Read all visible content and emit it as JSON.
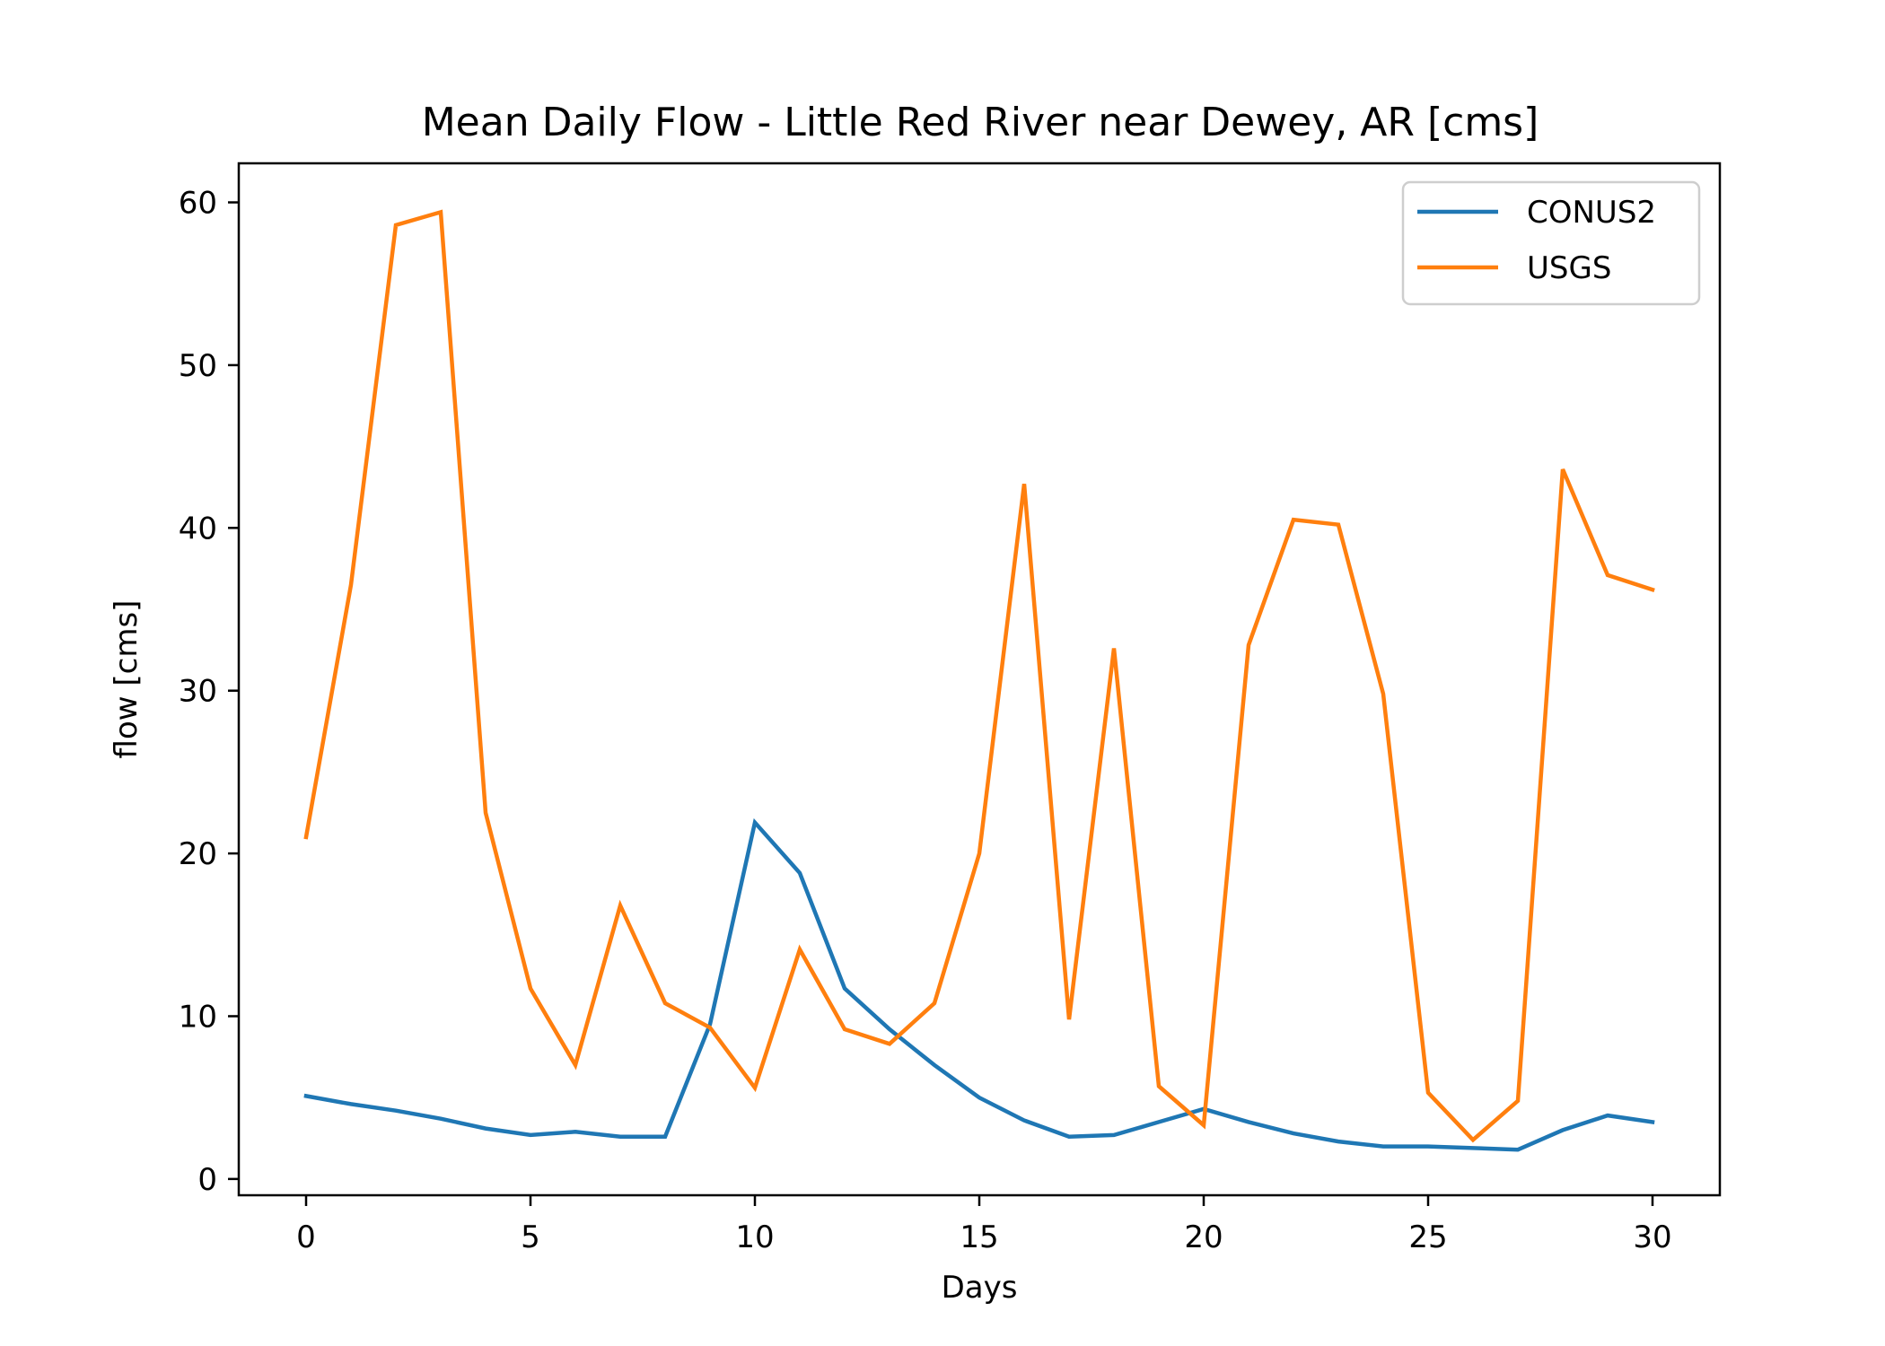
{
  "chart_data": {
    "type": "line",
    "title": "Mean Daily Flow - Little Red River near Dewey, AR [cms]",
    "xlabel": "Days",
    "ylabel": "flow [cms]",
    "xlim": [
      -1.5,
      31.5
    ],
    "ylim": [
      -1.0,
      62.4
    ],
    "xticks": [
      0,
      5,
      10,
      15,
      20,
      25,
      30
    ],
    "yticks": [
      0,
      10,
      20,
      30,
      40,
      50,
      60
    ],
    "grid": false,
    "legend_position": "upper right",
    "x": [
      0,
      1,
      2,
      3,
      4,
      5,
      6,
      7,
      8,
      9,
      10,
      11,
      12,
      13,
      14,
      15,
      16,
      17,
      18,
      19,
      20,
      21,
      22,
      23,
      24,
      25,
      26,
      27,
      28,
      29,
      30
    ],
    "series": [
      {
        "name": "CONUS2",
        "color": "#1f77b4",
        "values": [
          5.1,
          4.6,
          4.2,
          3.7,
          3.1,
          2.7,
          2.9,
          2.6,
          2.6,
          9.5,
          21.9,
          18.8,
          11.7,
          9.2,
          7.0,
          5.0,
          3.6,
          2.6,
          2.7,
          3.5,
          4.3,
          3.5,
          2.8,
          2.3,
          2.0,
          2.0,
          1.9,
          1.8,
          3.0,
          3.9,
          3.5
        ]
      },
      {
        "name": "USGS",
        "color": "#ff7f0e",
        "values": [
          21.0,
          36.5,
          58.6,
          59.4,
          22.5,
          11.7,
          7.0,
          16.8,
          10.8,
          9.3,
          5.6,
          14.1,
          9.2,
          8.3,
          10.8,
          20.0,
          42.7,
          9.8,
          32.6,
          5.7,
          3.3,
          32.8,
          40.5,
          40.2,
          29.8,
          5.3,
          2.4,
          4.8,
          43.6,
          37.1,
          36.2
        ]
      }
    ]
  }
}
